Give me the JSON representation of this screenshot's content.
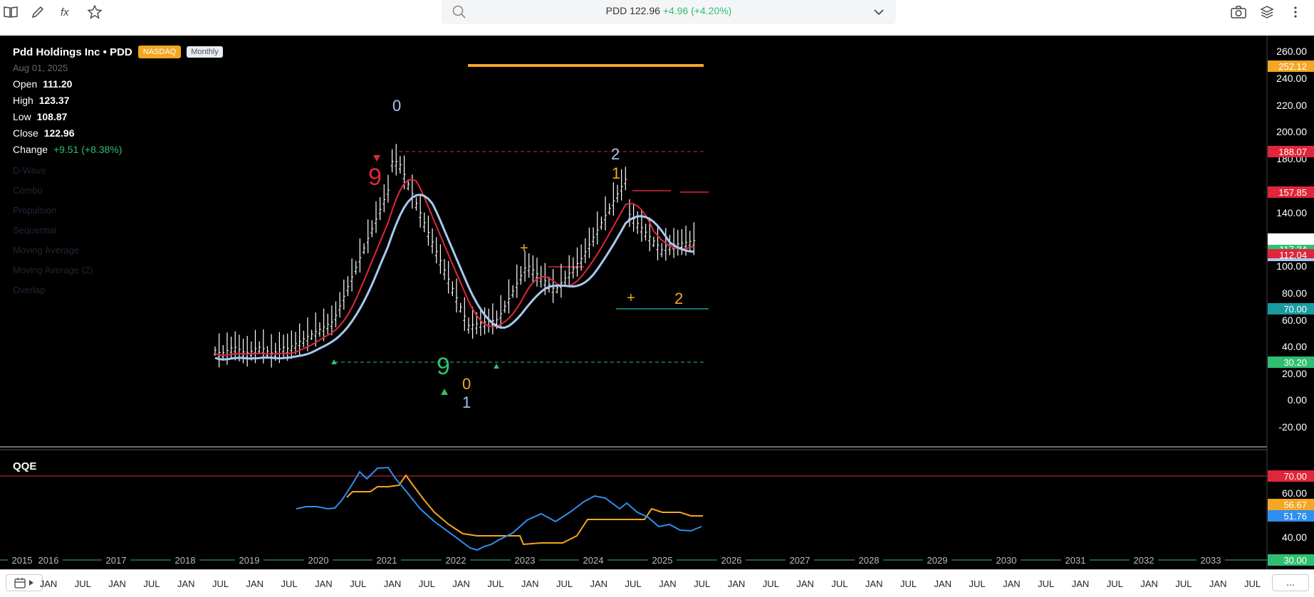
{
  "toolbar": {
    "left_icons": [
      "book-icon",
      "pencil-icon",
      "function-icon",
      "star-icon"
    ],
    "right_icons": [
      "camera-icon",
      "layers-icon",
      "more-vertical-icon"
    ]
  },
  "search": {
    "symbol": "PDD",
    "price": "122.96",
    "change": "+4.96",
    "change_pct": "(+4.20%)"
  },
  "info": {
    "name": "Pdd Holdings Inc • PDD",
    "exchange": "NASDAQ",
    "timeframe": "Monthly",
    "date": "Aug 01, 2025",
    "open_label": "Open",
    "open": "111.20",
    "high_label": "High",
    "high": "123.37",
    "low_label": "Low",
    "low": "108.87",
    "close_label": "Close",
    "close": "122.96",
    "change_label": "Change",
    "change": "+9.51 (+8.38%)",
    "indicators": [
      "D-Wave",
      "Combo",
      "Propulsion",
      "Sequential",
      "Moving Average",
      "Moving Average (2)",
      "Overlap"
    ]
  },
  "qqe": {
    "label": "QQE"
  },
  "colors": {
    "background": "#000000",
    "up_green": "#2fbf71",
    "red": "#e0263a",
    "orange": "#f5a623",
    "blue": "#2f8ff0",
    "light_blue": "#a8c8f0",
    "teal": "#1a9ba0"
  },
  "price_axis": {
    "ticks": [
      "260.00",
      "240.00",
      "220.00",
      "200.00",
      "180.00",
      "140.00",
      "100.00",
      "80.00",
      "60.00",
      "40.00",
      "20.00",
      "0.00",
      "-20.00"
    ],
    "badges": [
      {
        "label": "252.12",
        "color": "#f5a623"
      },
      {
        "label": "188.07",
        "color": "#e0263a"
      },
      {
        "label": "157.85",
        "color": "#e0263a"
      },
      {
        "label": "117.34",
        "color": "#2fbf71"
      },
      {
        "label": "112.04",
        "color": "#e0263a"
      },
      {
        "label": "70.00",
        "color": "#1a9ba0"
      },
      {
        "label": "30.20",
        "color": "#2fbf71"
      }
    ]
  },
  "qqe_axis": {
    "ticks": [
      "60.00",
      "40.00"
    ],
    "badges": [
      {
        "label": "70.00",
        "color": "#e0263a"
      },
      {
        "label": "56.67",
        "color": "#f5a623"
      },
      {
        "label": "51.76",
        "color": "#2f8ff0"
      },
      {
        "label": "30.00",
        "color": "#2fbf71"
      }
    ]
  },
  "year_labels": [
    "2015",
    "2016",
    "2017",
    "2018",
    "2019",
    "2020",
    "2021",
    "2022",
    "2023",
    "2024",
    "2025",
    "2026",
    "2027",
    "2028",
    "2029",
    "2030",
    "2031",
    "2032",
    "2033"
  ],
  "month_labels": [
    "JAN",
    "JUL",
    "JAN",
    "JUL",
    "JAN",
    "JUL",
    "JAN",
    "JUL",
    "JAN",
    "JUL",
    "JAN",
    "JUL",
    "JAN",
    "JUL",
    "JAN",
    "JUL",
    "JAN",
    "JUL",
    "JAN",
    "JUL",
    "JAN",
    "JUL",
    "JAN",
    "JUL",
    "JAN",
    "JUL",
    "JAN",
    "JUL",
    "JAN",
    "JUL",
    "JAN",
    "JUL",
    "JAN",
    "JUL",
    "JAN",
    "JUL"
  ],
  "annotations": [
    {
      "text": "0",
      "color": "#a8c8f0"
    },
    {
      "text": "9",
      "color": "#e0263a"
    },
    {
      "text": "2",
      "color": "#a8c8f0"
    },
    {
      "text": "1",
      "color": "#f5a623"
    },
    {
      "text": "9",
      "color": "#2fbf71"
    },
    {
      "text": "0",
      "color": "#f5a623"
    },
    {
      "text": "1",
      "color": "#a8c8f0"
    },
    {
      "text": "2",
      "color": "#f5a623"
    },
    {
      "text": "+",
      "color": "#f5a623"
    }
  ],
  "bottom": {
    "more_label": "..."
  }
}
